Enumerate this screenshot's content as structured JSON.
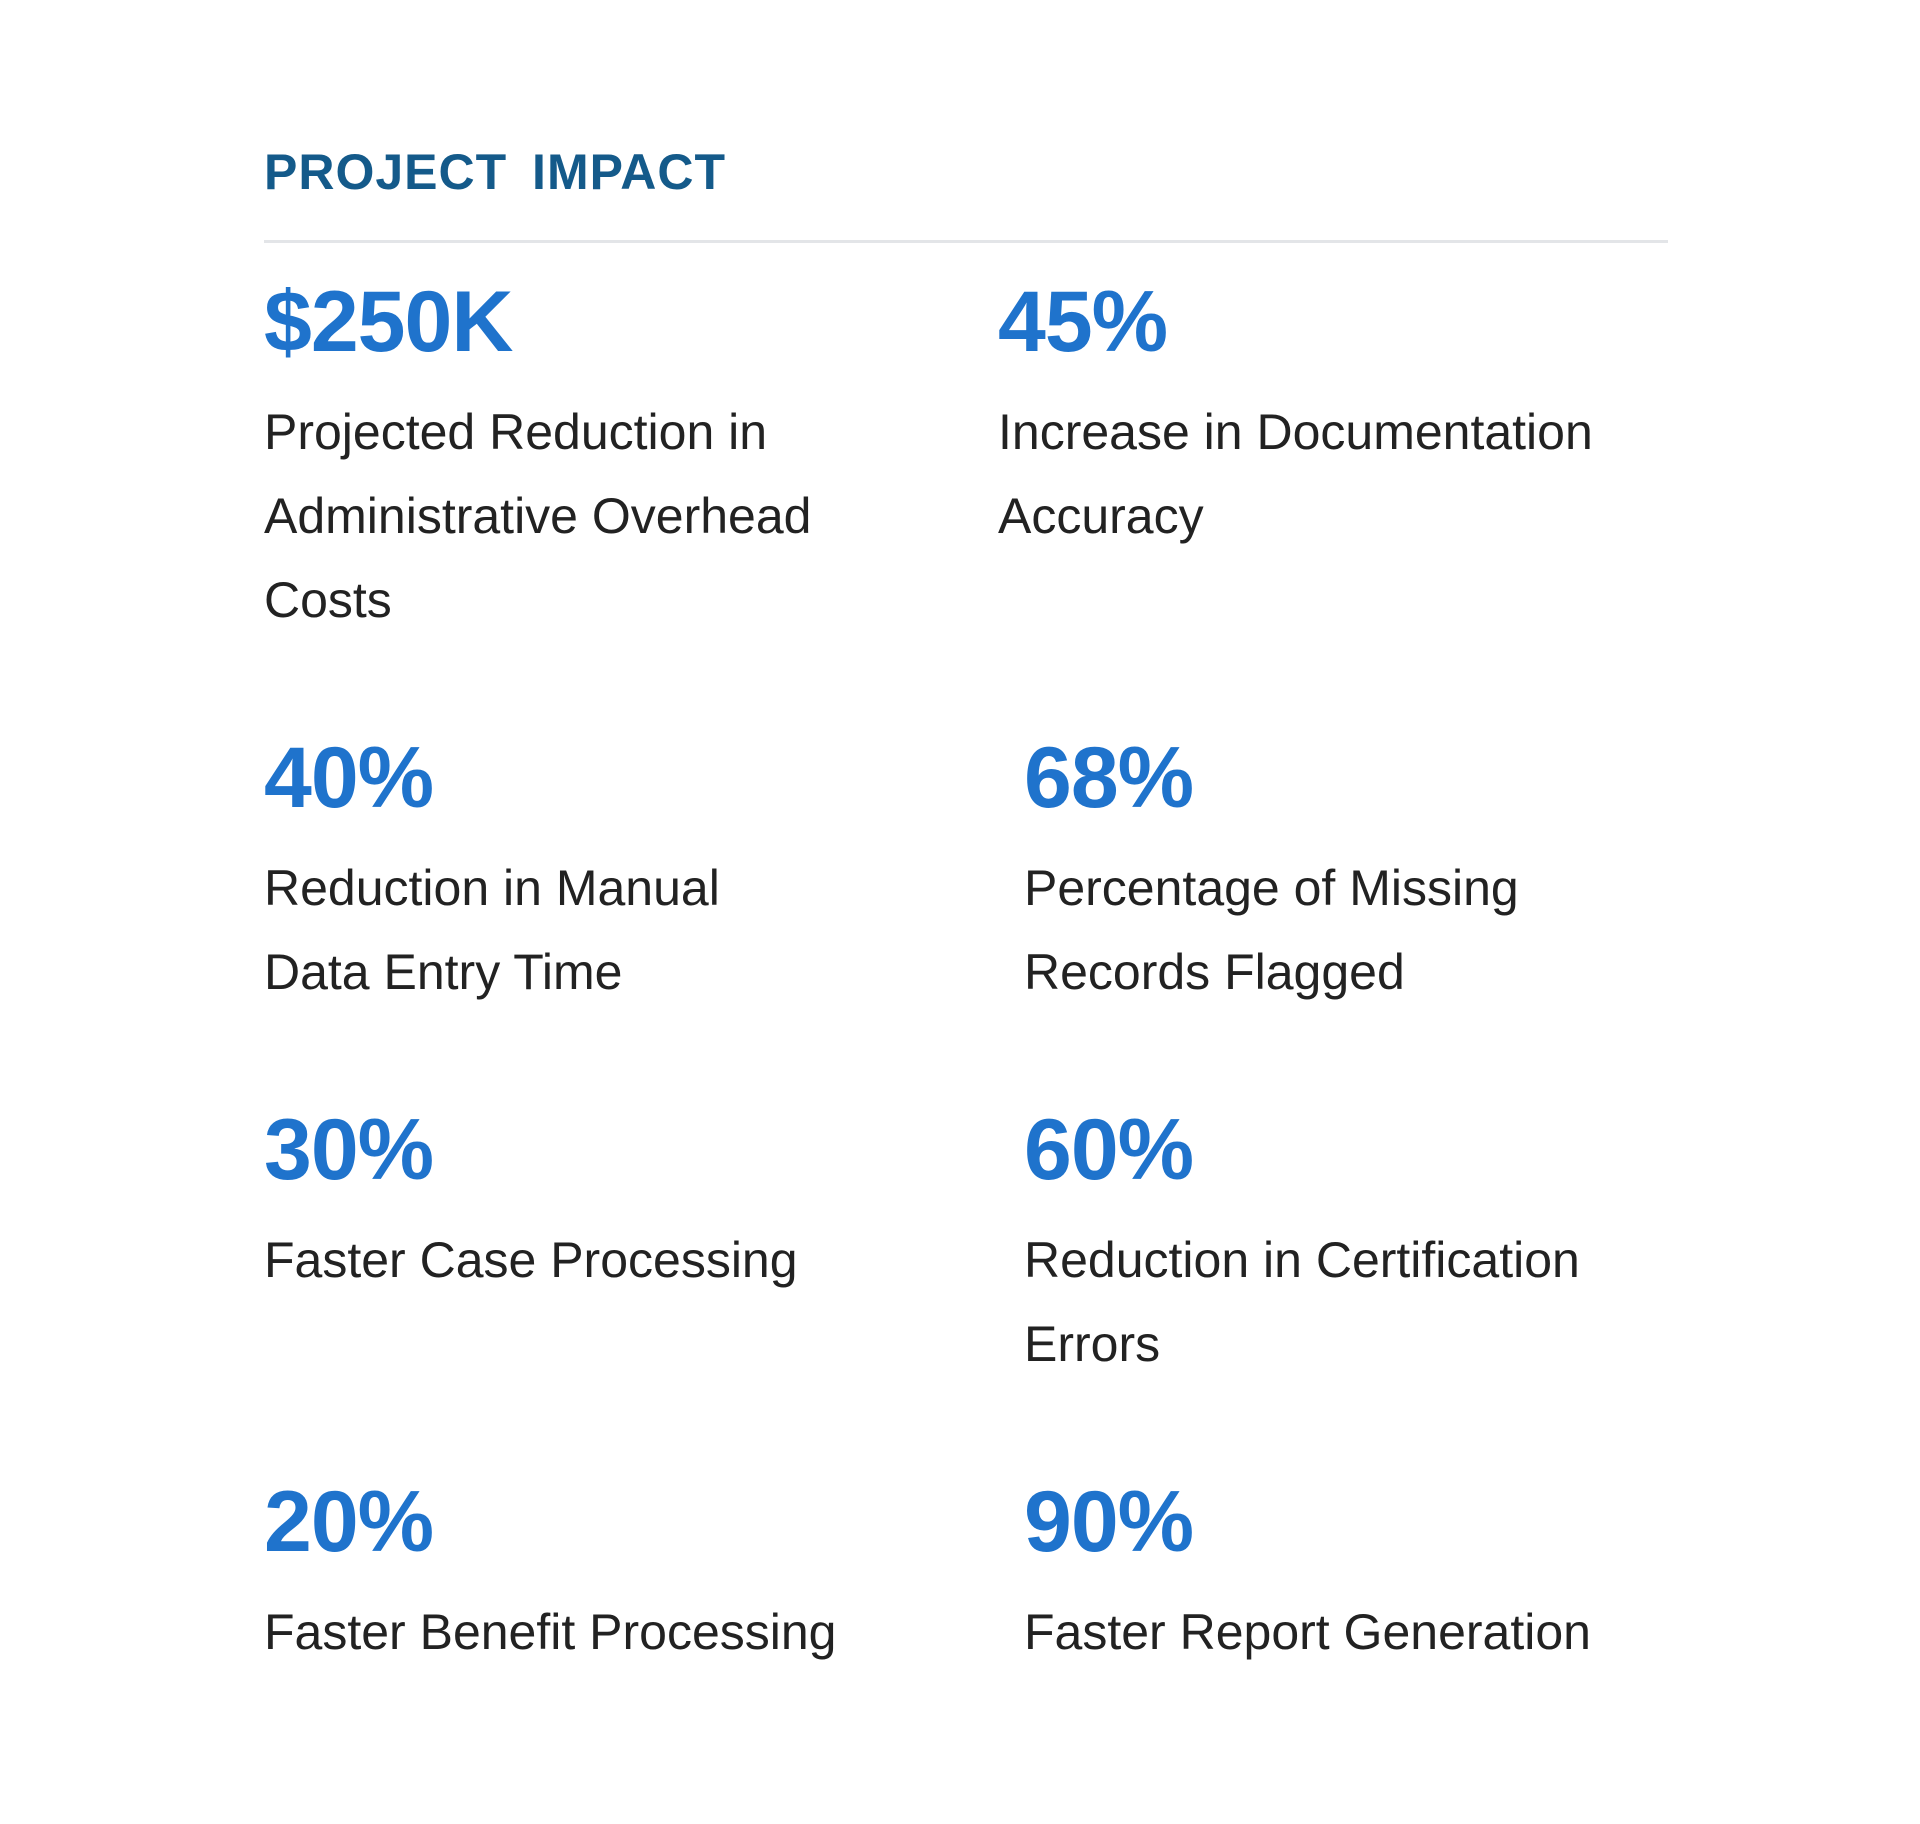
{
  "section": {
    "title": "PROJECT  IMPACT"
  },
  "stats": [
    {
      "value": "$250K",
      "label": "Projected Reduction in Administrative Overhead Costs"
    },
    {
      "value": "45%",
      "label": "Increase in Documentation Accuracy"
    },
    {
      "value": "40%",
      "label": "Reduction in Manual Data Entry Time"
    },
    {
      "value": "68%",
      "label": "Percentage of Missing Records Flagged"
    },
    {
      "value": "30%",
      "label": "Faster Case Processing"
    },
    {
      "value": "60%",
      "label": "Reduction in Certification Errors"
    },
    {
      "value": "20%",
      "label": "Faster Benefit Processing"
    },
    {
      "value": "90%",
      "label": "Faster Report Generation"
    }
  ],
  "colors": {
    "heading": "#145a8a",
    "stat_value": "#1f73cc",
    "label_text": "#222222",
    "divider": "#e3e5e8"
  }
}
